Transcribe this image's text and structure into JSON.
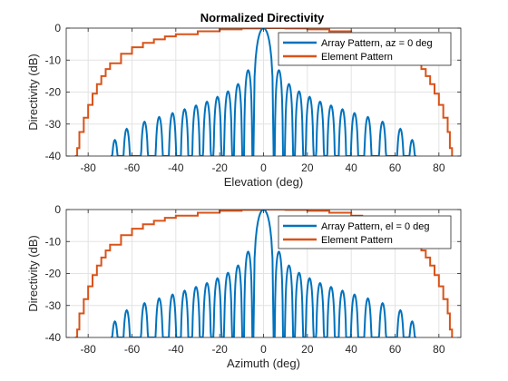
{
  "figure": {
    "title": "Normalized Directivity"
  },
  "chart_data": [
    {
      "type": "line",
      "xlabel": "Elevation (deg)",
      "ylabel": "Directivity (dB)",
      "xlim": [
        -90,
        90
      ],
      "ylim": [
        -40,
        0
      ],
      "xticks": [
        -80,
        -60,
        -40,
        -20,
        0,
        20,
        40,
        60,
        80
      ],
      "yticks": [
        0,
        -10,
        -20,
        -30,
        -40
      ],
      "grid": true,
      "legend_location": "top-right",
      "series": [
        {
          "name": "Array Pattern, az = 0 deg",
          "color": "#0072BD",
          "main_lobe": {
            "center": 0,
            "peak": 0,
            "half_width": 4.6
          },
          "sidelobes": [
            {
              "center": 7.0,
              "peak": -13.2
            },
            {
              "center": 11.6,
              "peak": -17.5
            },
            {
              "center": 16.2,
              "peak": -19.8
            },
            {
              "center": 21.0,
              "peak": -21.5
            },
            {
              "center": 25.8,
              "peak": -23.0
            },
            {
              "center": 30.8,
              "peak": -24.2
            },
            {
              "center": 36.0,
              "peak": -25.4
            },
            {
              "center": 41.5,
              "peak": -26.6
            },
            {
              "center": 47.6,
              "peak": -27.8
            },
            {
              "center": 54.3,
              "peak": -29.3
            },
            {
              "center": 62.4,
              "peak": -31.5
            },
            {
              "center": 67.8,
              "peak": -35.0
            }
          ],
          "floor": -40
        },
        {
          "name": "Element Pattern",
          "color": "#D95319",
          "points": [
            [
              -86,
              -40
            ],
            [
              -85,
              -37.5
            ],
            [
              -84,
              -32.5
            ],
            [
              -82,
              -28
            ],
            [
              -80,
              -24
            ],
            [
              -78,
              -20.5
            ],
            [
              -76,
              -17.5
            ],
            [
              -74,
              -15
            ],
            [
              -72,
              -12.8
            ],
            [
              -70,
              -11
            ],
            [
              -65,
              -8
            ],
            [
              -60,
              -6
            ],
            [
              -55,
              -4.6
            ],
            [
              -50,
              -3.5
            ],
            [
              -45,
              -2.6
            ],
            [
              -40,
              -1.9
            ],
            [
              -30,
              -1.0
            ],
            [
              -20,
              -0.4
            ],
            [
              -10,
              -0.1
            ],
            [
              0,
              0
            ],
            [
              10,
              -0.1
            ],
            [
              20,
              -0.4
            ],
            [
              30,
              -1.0
            ],
            [
              40,
              -1.9
            ],
            [
              45,
              -2.6
            ],
            [
              50,
              -3.5
            ],
            [
              55,
              -4.6
            ],
            [
              60,
              -6
            ],
            [
              65,
              -8
            ],
            [
              70,
              -11
            ],
            [
              72,
              -12.8
            ],
            [
              74,
              -15
            ],
            [
              76,
              -17.5
            ],
            [
              78,
              -20.5
            ],
            [
              80,
              -24
            ],
            [
              82,
              -28
            ],
            [
              84,
              -32.5
            ],
            [
              85,
              -37.5
            ],
            [
              86,
              -40
            ]
          ]
        }
      ]
    },
    {
      "type": "line",
      "xlabel": "Azimuth (deg)",
      "ylabel": "Directivity (dB)",
      "xlim": [
        -90,
        90
      ],
      "ylim": [
        -40,
        0
      ],
      "xticks": [
        -80,
        -60,
        -40,
        -20,
        0,
        20,
        40,
        60,
        80
      ],
      "yticks": [
        0,
        -10,
        -20,
        -30,
        -40
      ],
      "grid": true,
      "legend_location": "top-right",
      "series": [
        {
          "name": "Array Pattern, el = 0 deg",
          "color": "#0072BD",
          "main_lobe": {
            "center": 0,
            "peak": 0,
            "half_width": 4.6
          },
          "sidelobes": [
            {
              "center": 7.0,
              "peak": -13.2
            },
            {
              "center": 11.6,
              "peak": -17.5
            },
            {
              "center": 16.2,
              "peak": -19.8
            },
            {
              "center": 21.0,
              "peak": -21.5
            },
            {
              "center": 25.8,
              "peak": -23.0
            },
            {
              "center": 30.8,
              "peak": -24.2
            },
            {
              "center": 36.0,
              "peak": -25.4
            },
            {
              "center": 41.5,
              "peak": -26.6
            },
            {
              "center": 47.6,
              "peak": -27.8
            },
            {
              "center": 54.3,
              "peak": -29.3
            },
            {
              "center": 62.4,
              "peak": -31.5
            },
            {
              "center": 67.8,
              "peak": -35.0
            }
          ],
          "floor": -40
        },
        {
          "name": "Element Pattern",
          "color": "#D95319",
          "points": [
            [
              -86,
              -40
            ],
            [
              -85,
              -37.5
            ],
            [
              -84,
              -32.5
            ],
            [
              -82,
              -28
            ],
            [
              -80,
              -24
            ],
            [
              -78,
              -20.5
            ],
            [
              -76,
              -17.5
            ],
            [
              -74,
              -15
            ],
            [
              -72,
              -12.8
            ],
            [
              -70,
              -11
            ],
            [
              -65,
              -8
            ],
            [
              -60,
              -6
            ],
            [
              -55,
              -4.6
            ],
            [
              -50,
              -3.5
            ],
            [
              -45,
              -2.6
            ],
            [
              -40,
              -1.9
            ],
            [
              -30,
              -1.0
            ],
            [
              -20,
              -0.4
            ],
            [
              -10,
              -0.1
            ],
            [
              0,
              0
            ],
            [
              10,
              -0.1
            ],
            [
              20,
              -0.4
            ],
            [
              30,
              -1.0
            ],
            [
              40,
              -1.9
            ],
            [
              45,
              -2.6
            ],
            [
              50,
              -3.5
            ],
            [
              55,
              -4.6
            ],
            [
              60,
              -6
            ],
            [
              65,
              -8
            ],
            [
              70,
              -11
            ],
            [
              72,
              -12.8
            ],
            [
              74,
              -15
            ],
            [
              76,
              -17.5
            ],
            [
              78,
              -20.5
            ],
            [
              80,
              -24
            ],
            [
              82,
              -28
            ],
            [
              84,
              -32.5
            ],
            [
              85,
              -37.5
            ],
            [
              86,
              -40
            ]
          ]
        }
      ]
    }
  ]
}
